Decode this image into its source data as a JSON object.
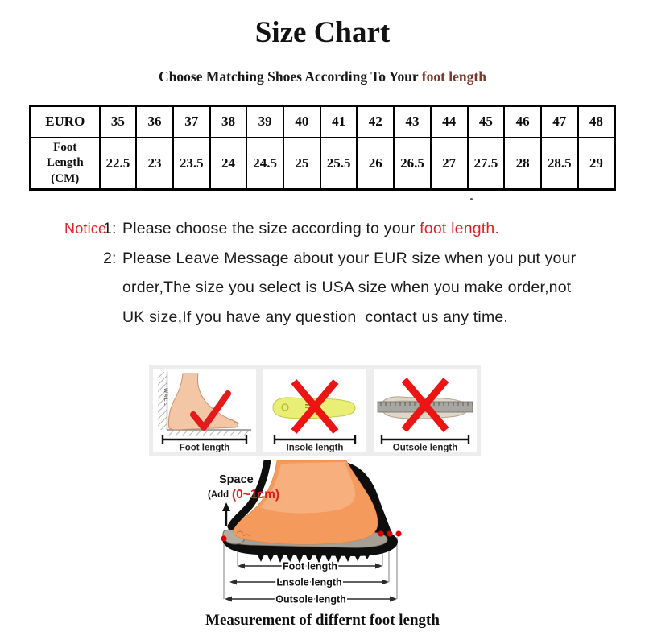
{
  "title": "Size Chart",
  "subtitle": {
    "prefix": "Choose Matching Shoes According To Your ",
    "highlight": "foot length"
  },
  "chart_data": {
    "type": "table",
    "title": "Size Chart",
    "rows": [
      {
        "label": "EURO",
        "values": [
          "35",
          "36",
          "37",
          "38",
          "39",
          "40",
          "41",
          "42",
          "43",
          "44",
          "45",
          "46",
          "47",
          "48"
        ]
      },
      {
        "label": "Foot Length (CM)",
        "values": [
          "22.5",
          "23",
          "23.5",
          "24",
          "24.5",
          "25",
          "25.5",
          "26",
          "26.5",
          "27",
          "27.5",
          "28",
          "28.5",
          "29"
        ]
      }
    ]
  },
  "notice": {
    "label": "Notice",
    "item1": {
      "marker": "1:",
      "text": "Please choose the size according to your ",
      "highlight": "foot length."
    },
    "item2": {
      "marker": "2:",
      "lines": [
        "Please Leave Message about your EUR size when you put your",
        "order,The size you select is USA size when you make order,not",
        "UK size,If you have any question  contact us any time."
      ]
    }
  },
  "panels": {
    "foot": {
      "label": "Foot length",
      "wall": "WALL"
    },
    "insole": {
      "label": "Insole length"
    },
    "outsole": {
      "label": "Outsole length"
    }
  },
  "diagram": {
    "space": "Space",
    "space_add": "(Add",
    "space_cm": "(0~1cm)",
    "foot_length": "Foot length",
    "insole_length": "Lnsole length",
    "outsole_length": "Outsole length"
  },
  "caption": "Measurement of differnt foot length",
  "colors": {
    "accent_red": "#e02222",
    "highlight_brown": "#7b392c",
    "check_cross_red": "#e41b1b",
    "insole_yellow": "#e9ee74",
    "outsole_tan": "#ded6c6",
    "skin_orange": "#f49a5c",
    "sole_black": "#0e0e0e"
  }
}
